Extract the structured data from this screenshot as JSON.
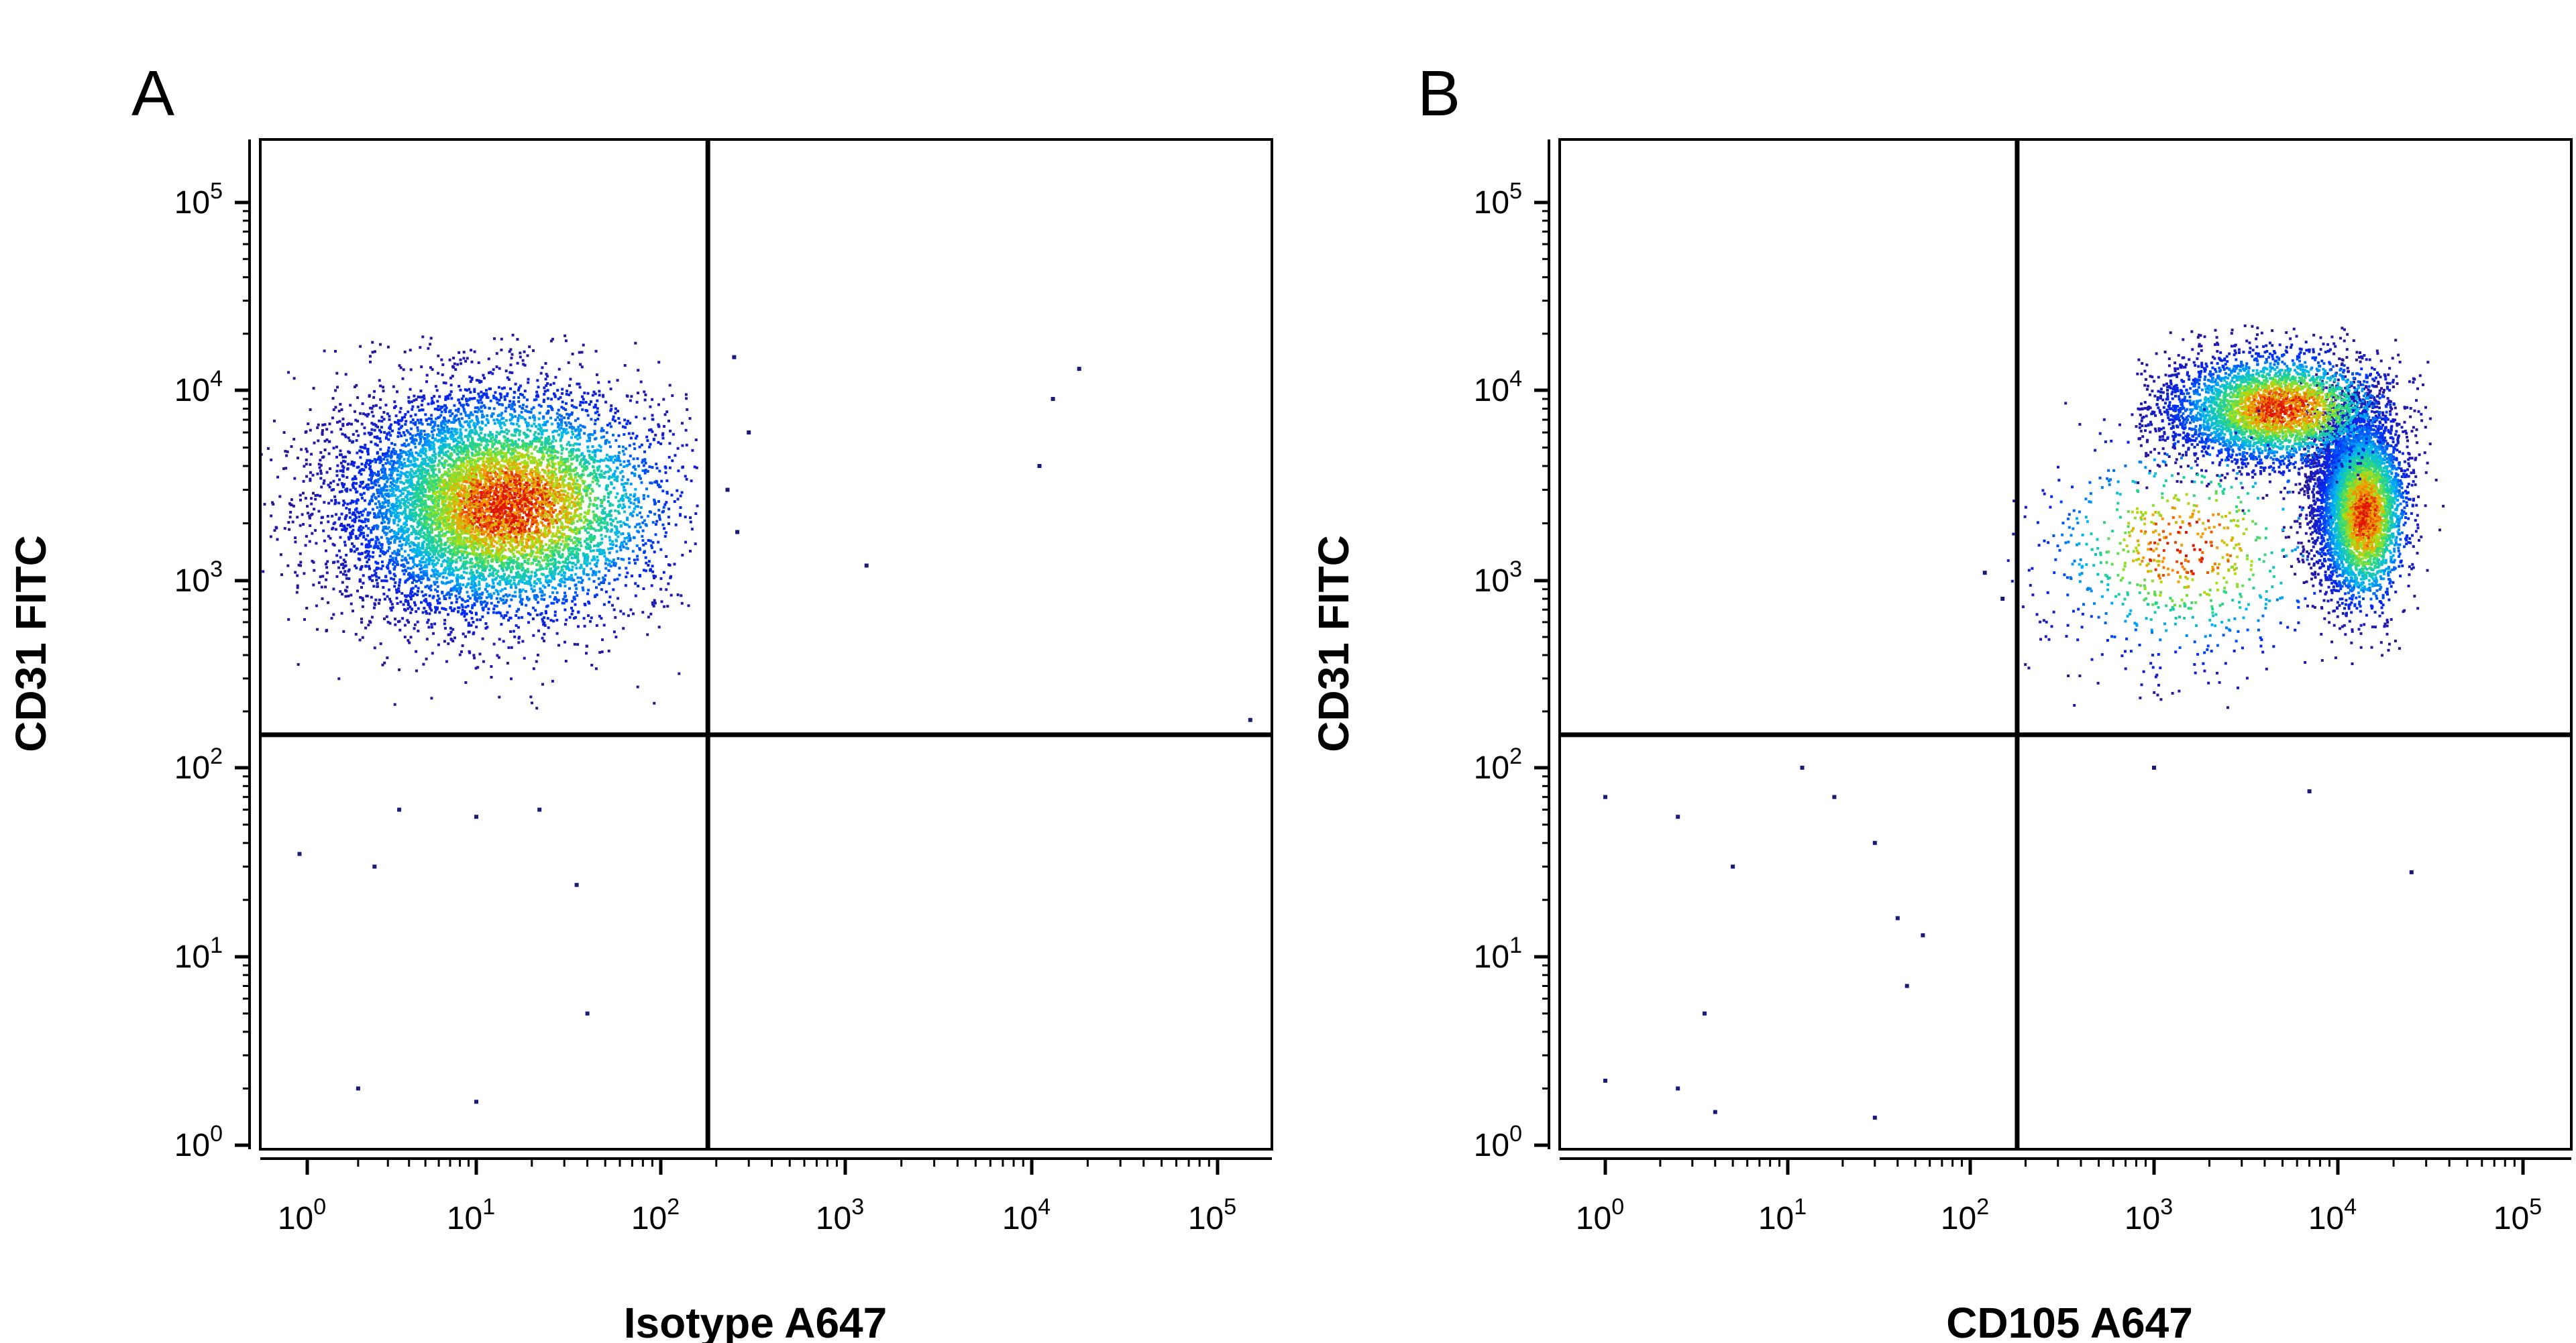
{
  "chart_data": [
    {
      "type": "scatter",
      "panel_label": "A",
      "xlabel": "Isotype A647",
      "ylabel": "CD31 FITC",
      "x_scale": "log",
      "y_scale": "log",
      "xlim": [
        0.6,
        200000
      ],
      "ylim": [
        0.75,
        200000
      ],
      "x_tick_labels": [
        "10^0",
        "10^1",
        "10^2",
        "10^3",
        "10^4",
        "10^5"
      ],
      "y_tick_labels": [
        "10^0",
        "10^1",
        "10^2",
        "10^3",
        "10^4",
        "10^5"
      ],
      "quadrant_gate": {
        "x": 180,
        "y": 150
      },
      "populations": [
        {
          "x_log10_center": 1.05,
          "y_log10_center": 3.4,
          "x_log10_sd": 0.45,
          "y_log10_sd": 0.3,
          "x_log10_range": [
            -0.3,
            2.2
          ],
          "y_log10_range": [
            2.3,
            4.3
          ],
          "events": 8500,
          "peak": {
            "x": 15,
            "y": 2500
          }
        }
      ],
      "outliers": [
        {
          "x": 250,
          "y": 15000
        },
        {
          "x": 300,
          "y": 6000
        },
        {
          "x": 230,
          "y": 3000
        },
        {
          "x": 260,
          "y": 1800
        },
        {
          "x": 1300,
          "y": 1200
        },
        {
          "x": 11000,
          "y": 4000
        },
        {
          "x": 13000,
          "y": 9000
        },
        {
          "x": 18000,
          "y": 13000
        },
        {
          "x": 150000,
          "y": 180
        },
        {
          "x": 3.5,
          "y": 60
        },
        {
          "x": 10,
          "y": 55
        },
        {
          "x": 22,
          "y": 60
        },
        {
          "x": 0.9,
          "y": 35
        },
        {
          "x": 2.5,
          "y": 30
        },
        {
          "x": 35,
          "y": 24
        },
        {
          "x": 40,
          "y": 5
        },
        {
          "x": 2.0,
          "y": 2.0
        },
        {
          "x": 10,
          "y": 1.7
        }
      ]
    },
    {
      "type": "scatter",
      "panel_label": "B",
      "xlabel": "CD105 A647",
      "ylabel": "CD31 FITC",
      "x_scale": "log",
      "y_scale": "log",
      "xlim": [
        0.6,
        200000
      ],
      "ylim": [
        0.75,
        200000
      ],
      "x_tick_labels": [
        "10^0",
        "10^1",
        "10^2",
        "10^3",
        "10^4",
        "10^5"
      ],
      "y_tick_labels": [
        "10^0",
        "10^1",
        "10^2",
        "10^3",
        "10^4",
        "10^5"
      ],
      "quadrant_gate": {
        "x": 180,
        "y": 150
      },
      "populations": [
        {
          "x_log10_center": 4.1,
          "y_log10_center": 3.45,
          "x_log10_sd": 0.12,
          "y_log10_sd": 0.25,
          "x_log10_range": [
            3.6,
            4.7
          ],
          "y_log10_range": [
            2.2,
            4.3
          ],
          "events": 5500,
          "peak": {
            "x": 14000,
            "y": 2200
          }
        },
        {
          "x_log10_center": 3.6,
          "y_log10_center": 3.9,
          "x_log10_sd": 0.3,
          "y_log10_sd": 0.15,
          "x_log10_range": [
            2.9,
            4.5
          ],
          "y_log10_range": [
            3.3,
            4.35
          ],
          "events": 3500,
          "peak": {
            "x": 5000,
            "y": 8000
          }
        },
        {
          "x_log10_center": 3.1,
          "y_log10_center": 3.1,
          "x_log10_sd": 0.4,
          "y_log10_sd": 0.3,
          "x_log10_range": [
            2.2,
            4.0
          ],
          "y_log10_range": [
            2.3,
            4.0
          ],
          "events": 700,
          "peak": {
            "x": 1500,
            "y": 1500
          }
        }
      ],
      "outliers": [
        {
          "x": 120,
          "y": 1100
        },
        {
          "x": 150,
          "y": 800
        },
        {
          "x": 1.0,
          "y": 70
        },
        {
          "x": 2.5,
          "y": 55
        },
        {
          "x": 5.0,
          "y": 30
        },
        {
          "x": 12,
          "y": 100
        },
        {
          "x": 18,
          "y": 70
        },
        {
          "x": 30,
          "y": 40
        },
        {
          "x": 40,
          "y": 16
        },
        {
          "x": 55,
          "y": 13
        },
        {
          "x": 45,
          "y": 7
        },
        {
          "x": 3.5,
          "y": 5
        },
        {
          "x": 1.0,
          "y": 2.2
        },
        {
          "x": 2.5,
          "y": 2.0
        },
        {
          "x": 4.0,
          "y": 1.5
        },
        {
          "x": 30,
          "y": 1.4
        },
        {
          "x": 1000,
          "y": 100
        },
        {
          "x": 7000,
          "y": 75
        },
        {
          "x": 25000,
          "y": 28
        }
      ]
    }
  ]
}
